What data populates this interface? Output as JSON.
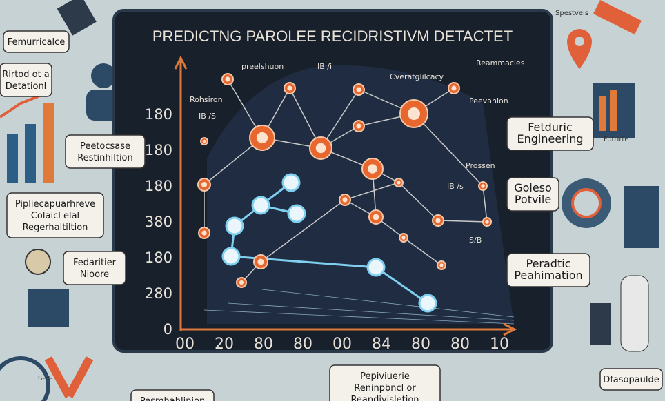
{
  "title": "PREDICTNG PAROLEE RECIDRISTIVM DETACTET",
  "chart": {
    "y_labels": [
      "180",
      "180",
      "180",
      "380",
      "180",
      "280",
      "0"
    ],
    "x_labels": [
      "00",
      "20",
      "80",
      "80",
      "00",
      "84",
      "80",
      "80",
      "10"
    ],
    "annotations": [
      "preelshuon",
      "IB /i",
      "Cveratglilcacy",
      "Reammacies",
      "Rohsiron",
      "IB /S",
      "Peevanion",
      "Prossen",
      "IB /s",
      "S/B"
    ]
  },
  "callouts": [
    {
      "lines": [
        "Femurricalce"
      ]
    },
    {
      "lines": [
        "Rirtod ot a",
        "Detationl"
      ]
    },
    {
      "lines": [
        "Peetocsase",
        "Restinhiltion"
      ]
    },
    {
      "lines": [
        "Pipliecapuarhreve",
        "Colaicl elal",
        "Regerhaltiltion"
      ]
    },
    {
      "lines": [
        "Fedaritier",
        "Nioore"
      ]
    },
    {
      "lines": [
        "Fetduric",
        "Engineering"
      ]
    },
    {
      "lines": [
        "Goieso",
        "Potvile"
      ]
    },
    {
      "lines": [
        "Peradtic",
        "Peahimation"
      ]
    },
    {
      "lines": [
        "Pepiviuerie",
        "Reninpbncl or",
        "Reandivisletion"
      ]
    },
    {
      "lines": [
        "Pesmhahlinion"
      ]
    },
    {
      "lines": [
        "Dfasopaulde"
      ]
    }
  ],
  "captions": [
    "Spestvels",
    "Fotrirte",
    "S-H-"
  ]
}
